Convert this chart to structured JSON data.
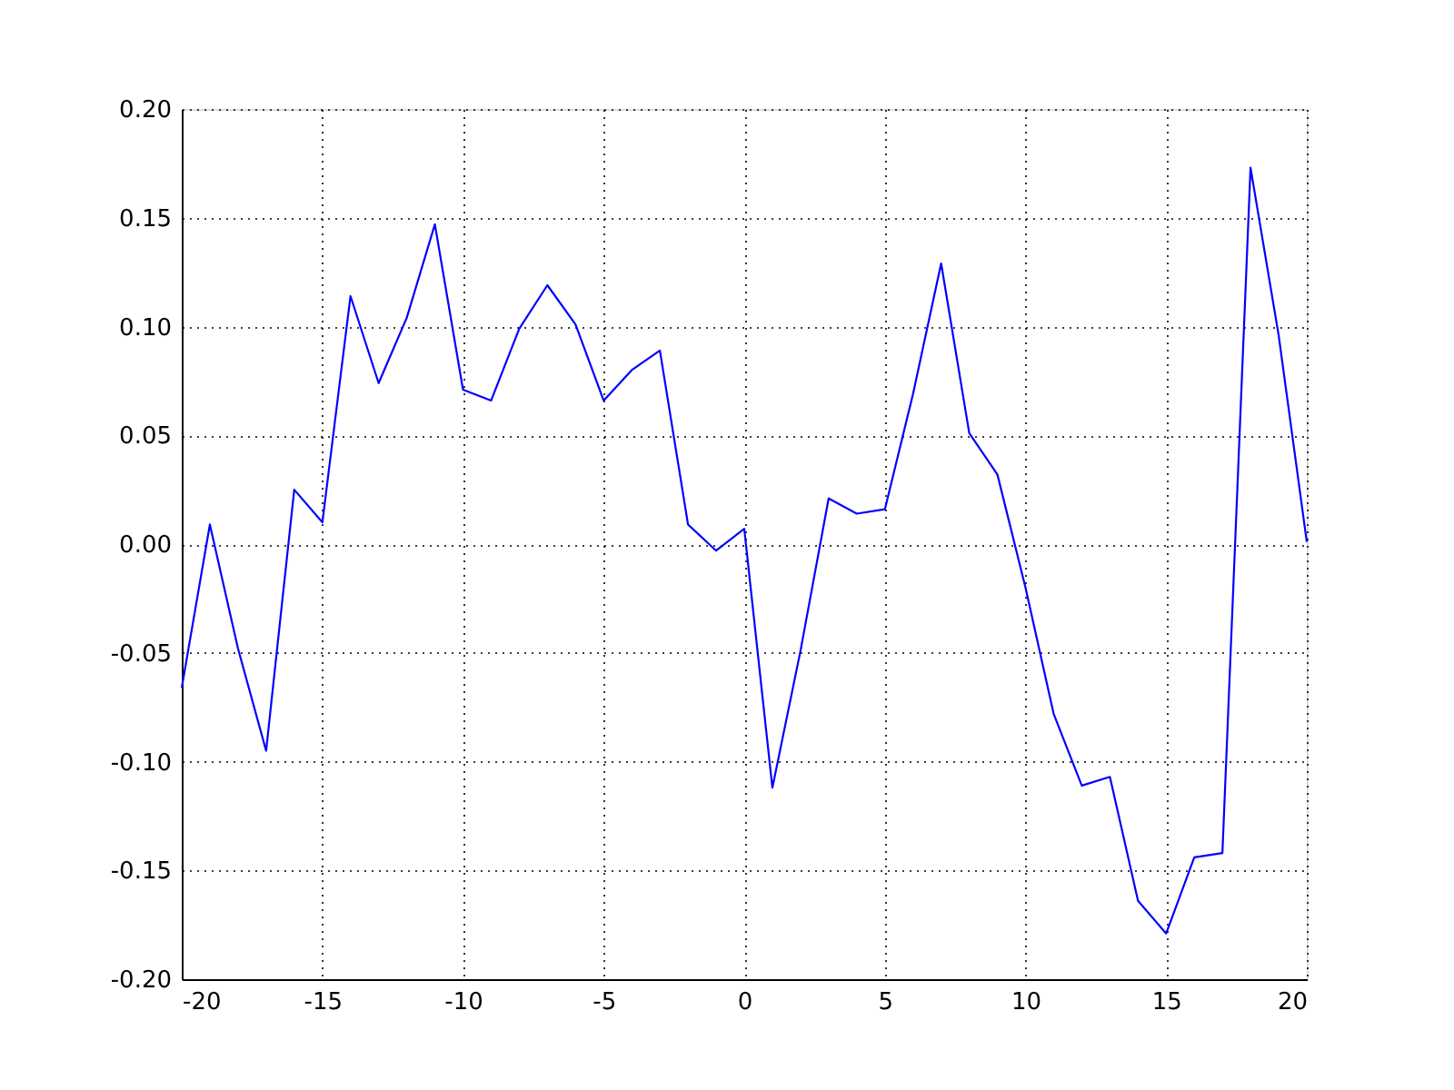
{
  "chart_data": {
    "type": "line",
    "x": [
      -20,
      -19,
      -18,
      -17,
      -16,
      -15,
      -14,
      -13,
      -12,
      -11,
      -10,
      -9,
      -8,
      -7,
      -6,
      -5,
      -4,
      -3,
      -2,
      -1,
      0,
      1,
      2,
      3,
      4,
      5,
      6,
      7,
      8,
      9,
      10,
      11,
      12,
      13,
      14,
      15,
      16,
      17,
      18,
      19,
      20
    ],
    "series": [
      {
        "color": "#0000ff",
        "values": [
          -0.066,
          0.009,
          -0.048,
          -0.095,
          0.025,
          0.01,
          0.114,
          0.074,
          0.104,
          0.147,
          0.071,
          0.066,
          0.099,
          0.119,
          0.101,
          0.066,
          0.08,
          0.089,
          0.009,
          -0.003,
          0.007,
          -0.112,
          -0.049,
          0.021,
          0.014,
          0.016,
          0.069,
          0.129,
          0.051,
          0.032,
          -0.02,
          -0.078,
          -0.111,
          -0.107,
          -0.164,
          -0.179,
          -0.144,
          -0.142,
          0.173,
          0.096,
          0.001
        ]
      }
    ],
    "xlim": [
      -20,
      20
    ],
    "ylim": [
      -0.2,
      0.2
    ],
    "xticks": [
      -20,
      -15,
      -10,
      -5,
      0,
      5,
      10,
      15,
      20
    ],
    "yticks": [
      {
        "value": -0.2,
        "label": "-0.20"
      },
      -0.15,
      {
        "value": -0.1,
        "label": "-0.10"
      },
      -0.05,
      {
        "value": 0,
        "label": "0.00"
      },
      0.05,
      {
        "value": 0.1,
        "label": "0.10"
      },
      0.15,
      {
        "value": 0.2,
        "label": "0.20"
      }
    ],
    "grid": true,
    "line_style": "solid"
  }
}
